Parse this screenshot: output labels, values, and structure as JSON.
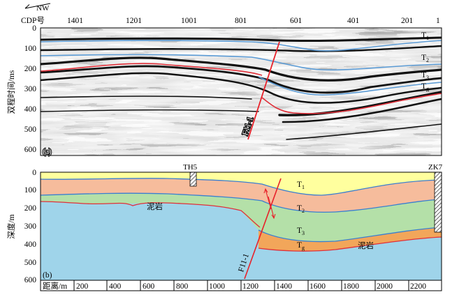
{
  "header": {
    "direction_label": "NW",
    "cdp_label": "CDP号",
    "cdp_ticks": [
      "1401",
      "1201",
      "1001",
      "801",
      "601",
      "401",
      "201",
      "1"
    ]
  },
  "panel_a": {
    "tag": "(a)",
    "y_axis_label": "双程时间/ms",
    "y_ticks": [
      "0",
      "100",
      "200",
      "300",
      "400",
      "500",
      "600"
    ],
    "horizon_labels": [
      "T1",
      "T2",
      "T3",
      "Tg"
    ],
    "fault_label": "F11-1",
    "colors": {
      "horizon_blue": "#5b9bd5",
      "horizon_red": "#e0303a",
      "fault": "#e8212a"
    }
  },
  "panel_b": {
    "tag": "(b)",
    "y_axis_label": "深度/m",
    "y_ticks": [
      "0",
      "100",
      "200",
      "300",
      "400",
      "500",
      "600"
    ],
    "x_axis_label": "距离/m",
    "x_ticks": [
      "200",
      "400",
      "600",
      "800",
      "1000",
      "1200",
      "1400",
      "1600",
      "1800",
      "2000",
      "2200"
    ],
    "wells": [
      "TH5",
      "ZK7"
    ],
    "layer_labels": [
      "T1",
      "T2",
      "T3",
      "Tg"
    ],
    "lithology_labels": [
      "泥岩",
      "泥岩"
    ],
    "fault_label": "F11-1",
    "colors": {
      "layer_top": "#ffff9e",
      "layer_1": "#f6bc9c",
      "layer_2": "#b4e0a8",
      "layer_3": "#f2a65a",
      "basement": "#9fd4ea",
      "boundary_blue": "#3a7fd0",
      "boundary_red": "#e0303a"
    }
  }
}
